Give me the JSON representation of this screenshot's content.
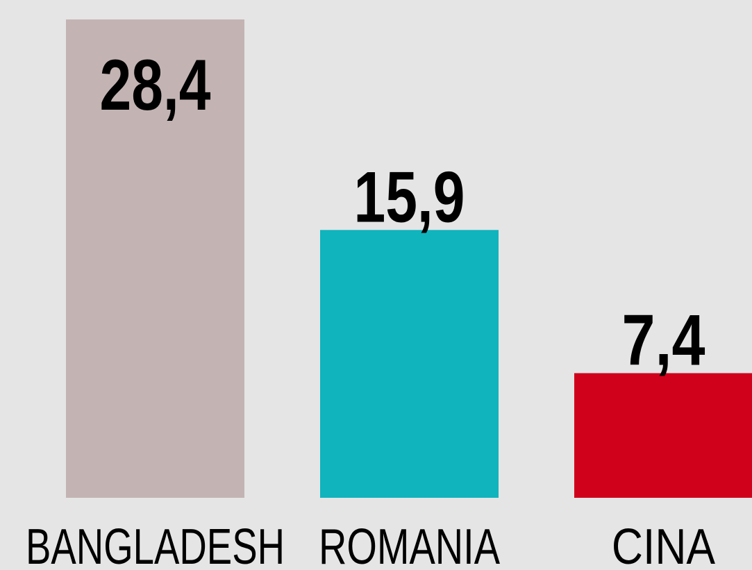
{
  "chart_data": {
    "type": "bar",
    "categories": [
      "BANGLADESH",
      "ROMANIA",
      "CINA"
    ],
    "values": [
      28.4,
      15.9,
      7.4
    ],
    "value_labels": [
      "28,4",
      "15,9",
      "7,4"
    ],
    "colors": [
      "#c3b4b3",
      "#10b4bd",
      "#d0021b"
    ]
  }
}
